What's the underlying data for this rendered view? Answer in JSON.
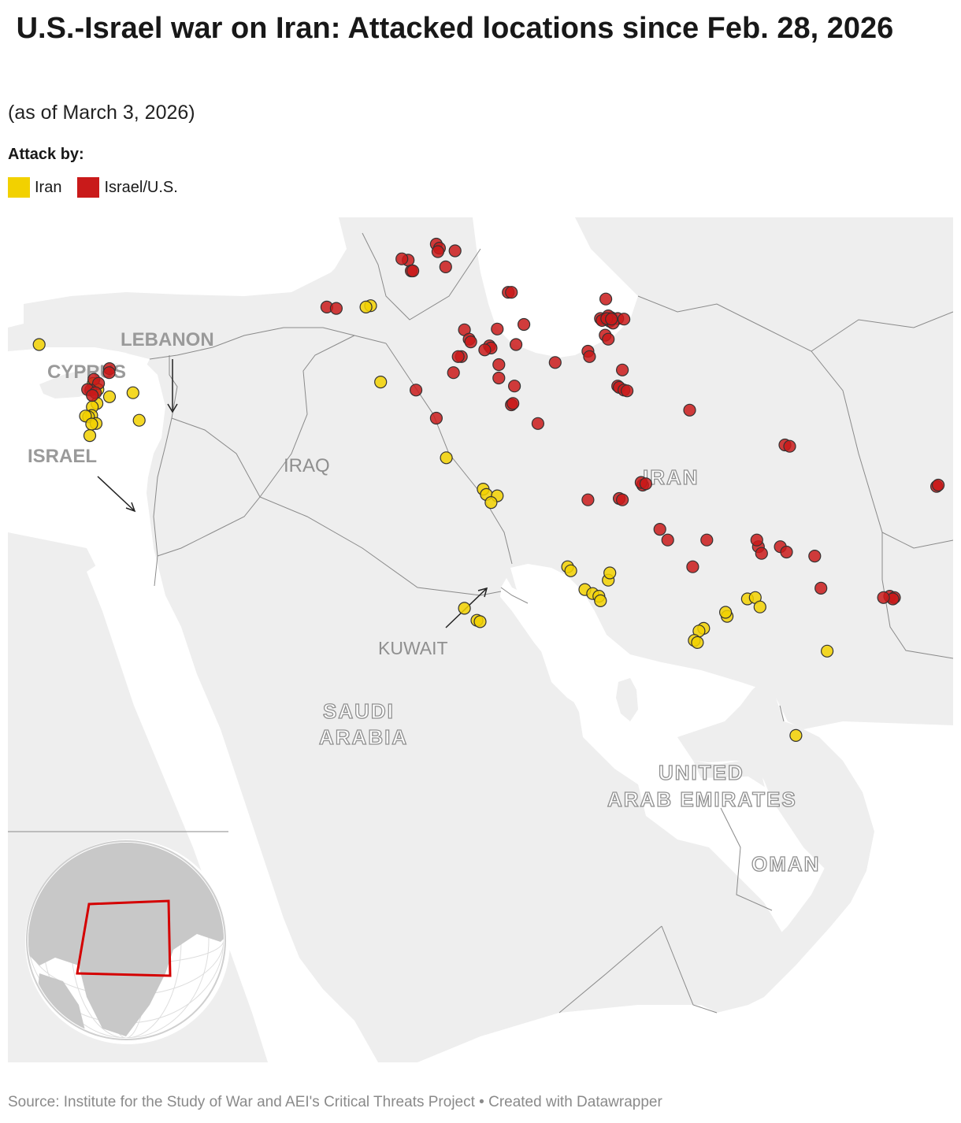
{
  "title": " U.S.-Israel war on Iran: Attacked locations since Feb. 28, 2026",
  "subtitle": "(as of March 3, 2026)",
  "legend": {
    "title": "Attack by:",
    "items": [
      {
        "label": "Iran",
        "color": "#f2d100"
      },
      {
        "label": "Israel/U.S.",
        "color": "#c91a1a"
      }
    ]
  },
  "colors": {
    "land": "#eeeeee",
    "water": "#ffffff",
    "border": "#8a8a8a",
    "iran_attack": "#f2d100",
    "israel_us_attack": "#c91a1a",
    "globe_frame": "#d40000"
  },
  "map_labels": {
    "cyprus": "CYPRUS",
    "lebanon": "LEBANON",
    "israel": "ISRAEL",
    "iraq": "IRAQ",
    "iran": "IRAN",
    "kuwait": "KUWAIT",
    "saudi_1": "SAUDI",
    "saudi_2": "ARABIA",
    "uae_1": "UNITED",
    "uae_2": "ARAB EMIRATES",
    "oman": "OMAN"
  },
  "markers": {
    "iran": [
      [
        35.03,
        33.3
      ],
      [
        35.18,
        33.07
      ],
      [
        35.55,
        32.8
      ],
      [
        35.15,
        32.55
      ],
      [
        35.0,
        32.42
      ],
      [
        34.98,
        32.1
      ],
      [
        34.88,
        32.05
      ],
      [
        34.78,
        32.08
      ],
      [
        35.12,
        31.8
      ],
      [
        34.98,
        31.78
      ],
      [
        34.92,
        31.35
      ],
      [
        36.3,
        32.95
      ],
      [
        36.5,
        31.92
      ],
      [
        43.9,
        36.2
      ],
      [
        43.75,
        36.15
      ],
      [
        44.22,
        33.35
      ],
      [
        46.32,
        30.52
      ],
      [
        47.5,
        29.35
      ],
      [
        47.6,
        29.15
      ],
      [
        47.95,
        29.1
      ],
      [
        47.75,
        28.85
      ],
      [
        51.5,
        25.95
      ],
      [
        50.2,
        26.45
      ],
      [
        50.3,
        26.3
      ],
      [
        51.55,
        26.22
      ],
      [
        50.75,
        25.6
      ],
      [
        51.0,
        25.45
      ],
      [
        51.2,
        25.35
      ],
      [
        51.25,
        25.18
      ],
      [
        46.9,
        24.9
      ],
      [
        47.3,
        24.45
      ],
      [
        47.4,
        24.4
      ],
      [
        54.55,
        24.15
      ],
      [
        54.4,
        24.05
      ],
      [
        55.3,
        24.6
      ],
      [
        55.25,
        24.75
      ],
      [
        55.95,
        25.25
      ],
      [
        56.2,
        25.3
      ],
      [
        56.35,
        24.95
      ],
      [
        54.25,
        23.7
      ],
      [
        54.35,
        23.62
      ],
      [
        58.5,
        23.3
      ],
      [
        57.5,
        20.15
      ],
      [
        33.3,
        34.75
      ]
    ],
    "israel_us": [
      [
        35.55,
        33.85
      ],
      [
        35.54,
        33.7
      ],
      [
        35.05,
        33.45
      ],
      [
        35.2,
        33.3
      ],
      [
        34.95,
        33.05
      ],
      [
        34.85,
        33.07
      ],
      [
        35.1,
        32.95
      ],
      [
        35.0,
        32.85
      ],
      [
        42.5,
        36.15
      ],
      [
        42.8,
        36.1
      ],
      [
        46.0,
        38.5
      ],
      [
        46.1,
        38.35
      ],
      [
        46.05,
        38.22
      ],
      [
        46.6,
        38.25
      ],
      [
        45.1,
        37.9
      ],
      [
        45.2,
        37.5
      ],
      [
        45.25,
        37.5
      ],
      [
        46.3,
        37.65
      ],
      [
        44.9,
        37.95
      ],
      [
        48.3,
        36.7
      ],
      [
        48.4,
        36.7
      ],
      [
        51.42,
        36.45
      ],
      [
        48.8,
        35.5
      ],
      [
        46.9,
        35.3
      ],
      [
        47.95,
        35.33
      ],
      [
        47.05,
        34.95
      ],
      [
        47.1,
        34.85
      ],
      [
        47.7,
        34.7
      ],
      [
        47.75,
        34.62
      ],
      [
        47.55,
        34.55
      ],
      [
        46.8,
        34.3
      ],
      [
        46.7,
        34.3
      ],
      [
        46.55,
        33.7
      ],
      [
        48.55,
        34.75
      ],
      [
        49.8,
        34.08
      ],
      [
        50.85,
        34.5
      ],
      [
        50.9,
        34.3
      ],
      [
        51.4,
        35.7
      ],
      [
        51.25,
        35.72
      ],
      [
        51.55,
        35.62
      ],
      [
        51.6,
        35.75
      ],
      [
        51.5,
        35.82
      ],
      [
        51.3,
        35.65
      ],
      [
        51.8,
        35.72
      ],
      [
        51.65,
        35.55
      ],
      [
        51.4,
        35.1
      ],
      [
        51.5,
        34.95
      ],
      [
        51.45,
        35.72
      ],
      [
        51.6,
        35.7
      ],
      [
        52.0,
        35.7
      ],
      [
        51.95,
        33.8
      ],
      [
        51.8,
        33.2
      ],
      [
        51.85,
        33.15
      ],
      [
        52.0,
        33.05
      ],
      [
        52.1,
        33.02
      ],
      [
        48.0,
        34.0
      ],
      [
        48.0,
        33.5
      ],
      [
        48.5,
        33.2
      ],
      [
        48.4,
        32.5
      ],
      [
        48.45,
        32.55
      ],
      [
        49.25,
        31.8
      ],
      [
        46.0,
        32.0
      ],
      [
        45.35,
        33.05
      ],
      [
        54.1,
        32.3
      ],
      [
        57.15,
        31.0
      ],
      [
        57.3,
        30.95
      ],
      [
        52.6,
        29.5
      ],
      [
        52.55,
        29.6
      ],
      [
        52.7,
        29.55
      ],
      [
        51.85,
        29.0
      ],
      [
        51.95,
        28.95
      ],
      [
        62.0,
        29.45
      ],
      [
        62.05,
        29.5
      ],
      [
        50.85,
        28.95
      ],
      [
        53.15,
        27.85
      ],
      [
        53.4,
        27.45
      ],
      [
        54.65,
        27.45
      ],
      [
        57.0,
        27.2
      ],
      [
        57.2,
        27.0
      ],
      [
        56.3,
        27.2
      ],
      [
        56.4,
        26.95
      ],
      [
        58.1,
        26.85
      ],
      [
        54.2,
        26.45
      ],
      [
        58.3,
        25.65
      ],
      [
        60.5,
        25.35
      ],
      [
        60.65,
        25.3
      ],
      [
        60.6,
        25.25
      ],
      [
        60.3,
        25.3
      ],
      [
        56.25,
        27.45
      ]
    ]
  },
  "attribution": "Source: Institute for the Study of War and AEI's Critical Threats Project • Created with Datawrapper"
}
